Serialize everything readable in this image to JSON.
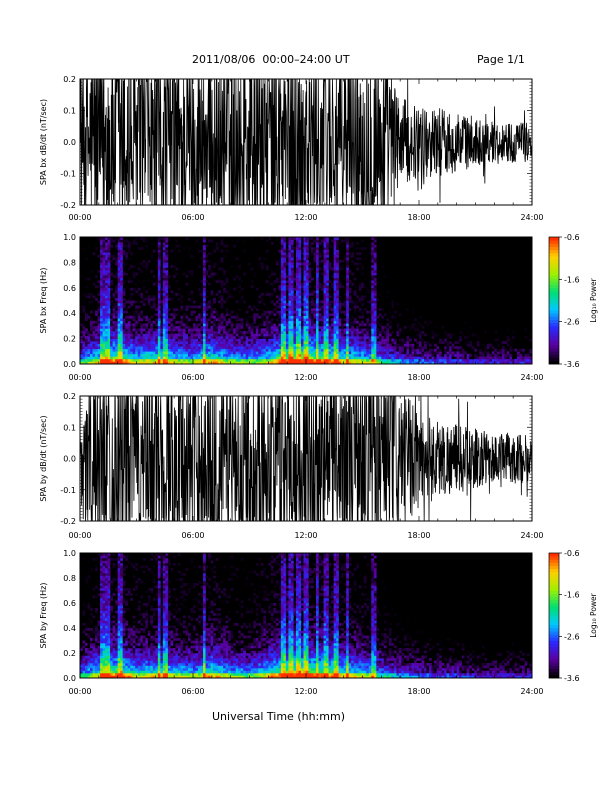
{
  "header": {
    "title": "2011/08/06  00:00–24:00 UT",
    "page": "Page 1/1"
  },
  "xaxis_title": "Universal Time (hh:mm)",
  "colorbar": {
    "label": "Log₁₀ Power",
    "ticks": [
      "-0.6",
      "-1.6",
      "-2.6",
      "-3.6"
    ],
    "range": [
      -3.6,
      -0.6
    ],
    "colors": [
      "#000000",
      "#5a00a0",
      "#2a2aff",
      "#00c8ff",
      "#00e070",
      "#a0f000",
      "#ffd000",
      "#ff3000"
    ]
  },
  "chart_data": [
    {
      "type": "line",
      "ylabel": "SPA bx dB/dt (nT/sec)",
      "xlim": [
        0,
        24
      ],
      "ylim": [
        -0.2,
        0.2
      ],
      "x_ticks": [
        "00:00",
        "06:00",
        "12:00",
        "18:00",
        "24:00"
      ],
      "y_ticks": [
        "-0.2",
        "-0.1",
        "0.0",
        "0.1",
        "0.2"
      ],
      "color": "#000000",
      "envelope_x": [
        0,
        1,
        2,
        3,
        4,
        5,
        6,
        7,
        8,
        9,
        10,
        11,
        12,
        13,
        14,
        15,
        16,
        17,
        18,
        19,
        20,
        21,
        22,
        23,
        24
      ],
      "envelope_amplitude": [
        0.2,
        0.2,
        0.2,
        0.2,
        0.2,
        0.2,
        0.2,
        0.2,
        0.2,
        0.2,
        0.2,
        0.2,
        0.2,
        0.2,
        0.2,
        0.2,
        0.2,
        0.09,
        0.07,
        0.07,
        0.06,
        0.05,
        0.04,
        0.04,
        0.04
      ]
    },
    {
      "type": "heatmap",
      "ylabel": "SPA bx Freq (Hz)",
      "xlim": [
        0,
        24
      ],
      "ylim": [
        0,
        1.0
      ],
      "x_ticks": [
        "00:00",
        "06:00",
        "12:00",
        "18:00",
        "24:00"
      ],
      "y_ticks": [
        "0.0",
        "0.2",
        "0.4",
        "0.6",
        "0.8",
        "1.0"
      ],
      "zlim": [
        -3.6,
        -0.6
      ],
      "activity_x": [
        0,
        1,
        2,
        3,
        4,
        5,
        6,
        7,
        8,
        9,
        10,
        11,
        12,
        13,
        14,
        15,
        16,
        17,
        18,
        19,
        20,
        21,
        22,
        23,
        24
      ],
      "activity_level": [
        0.55,
        0.75,
        0.9,
        0.7,
        0.75,
        0.7,
        0.65,
        0.8,
        0.65,
        0.6,
        0.7,
        0.95,
        0.95,
        0.85,
        0.75,
        0.7,
        0.55,
        0.45,
        0.4,
        0.35,
        0.35,
        0.3,
        0.3,
        0.3,
        0.3
      ],
      "bright_columns_hours": [
        1.2,
        1.5,
        2.1,
        4.2,
        4.5,
        6.6,
        10.8,
        11.2,
        11.6,
        12.0,
        12.6,
        13.1,
        13.6,
        14.2,
        15.6
      ]
    },
    {
      "type": "line",
      "ylabel": "SPA by dB/dt (nT/sec)",
      "xlim": [
        0,
        24
      ],
      "ylim": [
        -0.2,
        0.2
      ],
      "x_ticks": [
        "00:00",
        "06:00",
        "12:00",
        "18:00",
        "24:00"
      ],
      "y_ticks": [
        "-0.2",
        "-0.1",
        "0.0",
        "0.1",
        "0.2"
      ],
      "color": "#000000",
      "envelope_x": [
        0,
        1,
        2,
        3,
        4,
        5,
        6,
        7,
        8,
        9,
        10,
        11,
        12,
        13,
        14,
        15,
        16,
        17,
        18,
        19,
        20,
        21,
        22,
        23,
        24
      ],
      "envelope_amplitude": [
        0.12,
        0.2,
        0.2,
        0.2,
        0.2,
        0.2,
        0.2,
        0.2,
        0.2,
        0.2,
        0.2,
        0.2,
        0.2,
        0.2,
        0.2,
        0.2,
        0.2,
        0.14,
        0.1,
        0.08,
        0.07,
        0.06,
        0.05,
        0.05,
        0.05
      ]
    },
    {
      "type": "heatmap",
      "ylabel": "SPA by Freq (Hz)",
      "xlim": [
        0,
        24
      ],
      "ylim": [
        0,
        1.0
      ],
      "x_ticks": [
        "00:00",
        "06:00",
        "12:00",
        "18:00",
        "24:00"
      ],
      "y_ticks": [
        "0.0",
        "0.2",
        "0.4",
        "0.6",
        "0.8",
        "1.0"
      ],
      "zlim": [
        -3.6,
        -0.6
      ],
      "activity_x": [
        0,
        1,
        2,
        3,
        4,
        5,
        6,
        7,
        8,
        9,
        10,
        11,
        12,
        13,
        14,
        15,
        16,
        17,
        18,
        19,
        20,
        21,
        22,
        23,
        24
      ],
      "activity_level": [
        0.55,
        0.75,
        0.9,
        0.7,
        0.75,
        0.7,
        0.65,
        0.8,
        0.65,
        0.6,
        0.75,
        0.95,
        0.95,
        0.85,
        0.75,
        0.7,
        0.55,
        0.45,
        0.4,
        0.35,
        0.35,
        0.3,
        0.3,
        0.3,
        0.3
      ],
      "bright_columns_hours": [
        1.2,
        1.5,
        2.1,
        4.2,
        4.5,
        6.6,
        10.8,
        11.2,
        11.6,
        12.0,
        12.6,
        13.1,
        13.6,
        14.2,
        15.6
      ]
    }
  ]
}
